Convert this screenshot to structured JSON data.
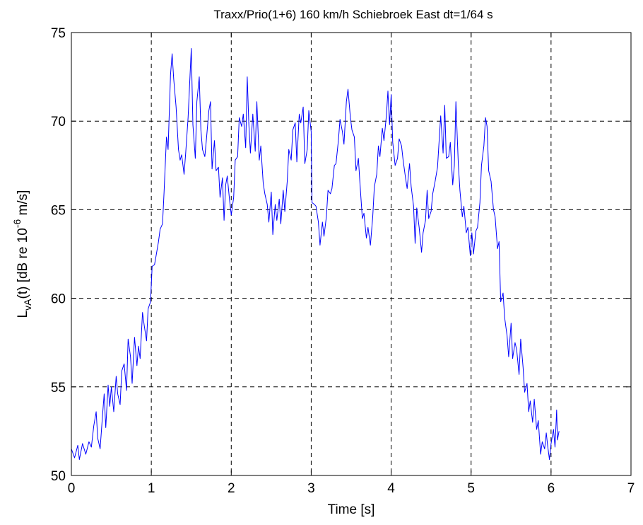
{
  "chart_data": {
    "type": "line",
    "title": "Traxx/Prio(1+6) 160 km/h  Schiebroek East dt=1/64 s",
    "xlabel": "Time [s]",
    "ylabel": {
      "base": "L",
      "sub": "vA",
      "mid": "(t) [dB re 10",
      "sup": "-6",
      "end": " m/s]"
    },
    "xlim": [
      0,
      7
    ],
    "ylim": [
      50,
      75
    ],
    "xticks": [
      "0",
      "1",
      "2",
      "3",
      "4",
      "5",
      "6",
      "7"
    ],
    "yticks": [
      "50",
      "55",
      "60",
      "65",
      "70",
      "75"
    ],
    "grid": true,
    "grid_style": "dashed",
    "line_color": "#0000ff",
    "series": [
      {
        "points": [
          [
            0.0,
            51.5
          ],
          [
            0.04,
            51.0
          ],
          [
            0.08,
            51.7
          ],
          [
            0.1,
            50.9
          ],
          [
            0.14,
            51.8
          ],
          [
            0.18,
            51.2
          ],
          [
            0.22,
            51.9
          ],
          [
            0.25,
            51.6
          ],
          [
            0.28,
            52.8
          ],
          [
            0.31,
            53.6
          ],
          [
            0.33,
            52.1
          ],
          [
            0.36,
            51.5
          ],
          [
            0.39,
            53.4
          ],
          [
            0.41,
            54.6
          ],
          [
            0.43,
            52.7
          ],
          [
            0.46,
            55.1
          ],
          [
            0.48,
            53.9
          ],
          [
            0.5,
            55.0
          ],
          [
            0.53,
            53.6
          ],
          [
            0.56,
            55.6
          ],
          [
            0.58,
            54.6
          ],
          [
            0.61,
            54.0
          ],
          [
            0.63,
            55.9
          ],
          [
            0.66,
            56.3
          ],
          [
            0.69,
            54.8
          ],
          [
            0.71,
            57.7
          ],
          [
            0.74,
            56.7
          ],
          [
            0.76,
            55.2
          ],
          [
            0.79,
            57.8
          ],
          [
            0.82,
            56.2
          ],
          [
            0.84,
            57.3
          ],
          [
            0.86,
            56.6
          ],
          [
            0.89,
            59.2
          ],
          [
            0.91,
            58.5
          ],
          [
            0.94,
            57.6
          ],
          [
            0.96,
            59.4
          ],
          [
            0.99,
            59.8
          ],
          [
            1.01,
            61.8
          ],
          [
            1.04,
            61.9
          ],
          [
            1.06,
            62.4
          ],
          [
            1.09,
            63.2
          ],
          [
            1.11,
            63.9
          ],
          [
            1.14,
            64.2
          ],
          [
            1.16,
            66.0
          ],
          [
            1.19,
            69.1
          ],
          [
            1.21,
            68.4
          ],
          [
            1.24,
            72.6
          ],
          [
            1.26,
            73.8
          ],
          [
            1.28,
            72.4
          ],
          [
            1.31,
            70.8
          ],
          [
            1.34,
            68.4
          ],
          [
            1.36,
            67.8
          ],
          [
            1.38,
            68.1
          ],
          [
            1.41,
            67.0
          ],
          [
            1.43,
            68.2
          ],
          [
            1.46,
            70.2
          ],
          [
            1.48,
            72.2
          ],
          [
            1.5,
            74.1
          ],
          [
            1.52,
            69.8
          ],
          [
            1.55,
            67.9
          ],
          [
            1.57,
            71.1
          ],
          [
            1.6,
            72.5
          ],
          [
            1.62,
            69.5
          ],
          [
            1.64,
            68.4
          ],
          [
            1.67,
            68.0
          ],
          [
            1.69,
            69.0
          ],
          [
            1.72,
            70.6
          ],
          [
            1.74,
            71.1
          ],
          [
            1.76,
            67.3
          ],
          [
            1.79,
            68.9
          ],
          [
            1.81,
            67.2
          ],
          [
            1.84,
            67.4
          ],
          [
            1.86,
            65.7
          ],
          [
            1.89,
            66.8
          ],
          [
            1.91,
            64.4
          ],
          [
            1.93,
            66.4
          ],
          [
            1.95,
            66.9
          ],
          [
            1.98,
            65.5
          ],
          [
            2.0,
            64.7
          ],
          [
            2.03,
            65.7
          ],
          [
            2.05,
            67.8
          ],
          [
            2.08,
            68.0
          ],
          [
            2.1,
            70.2
          ],
          [
            2.13,
            69.7
          ],
          [
            2.15,
            70.4
          ],
          [
            2.18,
            68.5
          ],
          [
            2.2,
            72.5
          ],
          [
            2.22,
            69.8
          ],
          [
            2.24,
            68.2
          ],
          [
            2.27,
            70.4
          ],
          [
            2.3,
            68.3
          ],
          [
            2.32,
            71.1
          ],
          [
            2.35,
            67.8
          ],
          [
            2.37,
            68.6
          ],
          [
            2.4,
            66.5
          ],
          [
            2.42,
            65.9
          ],
          [
            2.45,
            65.3
          ],
          [
            2.47,
            64.3
          ],
          [
            2.5,
            66.0
          ],
          [
            2.52,
            63.6
          ],
          [
            2.55,
            65.3
          ],
          [
            2.57,
            64.4
          ],
          [
            2.6,
            65.6
          ],
          [
            2.62,
            64.2
          ],
          [
            2.65,
            66.1
          ],
          [
            2.67,
            64.9
          ],
          [
            2.7,
            66.6
          ],
          [
            2.72,
            68.4
          ],
          [
            2.75,
            67.8
          ],
          [
            2.77,
            69.5
          ],
          [
            2.8,
            69.9
          ],
          [
            2.82,
            67.7
          ],
          [
            2.85,
            70.4
          ],
          [
            2.87,
            69.9
          ],
          [
            2.9,
            70.8
          ],
          [
            2.92,
            67.6
          ],
          [
            2.95,
            68.4
          ],
          [
            2.97,
            70.6
          ],
          [
            3.0,
            69.4
          ],
          [
            3.01,
            65.4
          ],
          [
            3.04,
            65.3
          ],
          [
            3.06,
            65.2
          ],
          [
            3.09,
            64.3
          ],
          [
            3.11,
            63.0
          ],
          [
            3.14,
            64.3
          ],
          [
            3.16,
            63.5
          ],
          [
            3.19,
            64.6
          ],
          [
            3.21,
            66.1
          ],
          [
            3.24,
            65.9
          ],
          [
            3.26,
            66.2
          ],
          [
            3.29,
            67.5
          ],
          [
            3.31,
            67.6
          ],
          [
            3.34,
            68.9
          ],
          [
            3.36,
            70.1
          ],
          [
            3.39,
            69.4
          ],
          [
            3.41,
            68.7
          ],
          [
            3.44,
            71.1
          ],
          [
            3.46,
            71.8
          ],
          [
            3.49,
            70.2
          ],
          [
            3.51,
            69.5
          ],
          [
            3.54,
            69.1
          ],
          [
            3.56,
            67.2
          ],
          [
            3.59,
            67.9
          ],
          [
            3.61,
            66.5
          ],
          [
            3.64,
            64.5
          ],
          [
            3.66,
            64.8
          ],
          [
            3.69,
            63.4
          ],
          [
            3.71,
            64.0
          ],
          [
            3.74,
            63.0
          ],
          [
            3.77,
            64.6
          ],
          [
            3.79,
            66.3
          ],
          [
            3.82,
            67.0
          ],
          [
            3.84,
            68.6
          ],
          [
            3.86,
            68.0
          ],
          [
            3.89,
            69.6
          ],
          [
            3.91,
            68.9
          ],
          [
            3.94,
            70.3
          ],
          [
            3.96,
            71.7
          ],
          [
            3.98,
            69.8
          ],
          [
            4.0,
            71.5
          ],
          [
            4.02,
            68.8
          ],
          [
            4.05,
            67.5
          ],
          [
            4.08,
            67.9
          ],
          [
            4.1,
            69.0
          ],
          [
            4.13,
            68.6
          ],
          [
            4.15,
            67.8
          ],
          [
            4.18,
            66.8
          ],
          [
            4.2,
            66.2
          ],
          [
            4.23,
            67.6
          ],
          [
            4.25,
            66.3
          ],
          [
            4.28,
            65.2
          ],
          [
            4.3,
            63.1
          ],
          [
            4.32,
            65.1
          ],
          [
            4.35,
            64.0
          ],
          [
            4.38,
            62.6
          ],
          [
            4.4,
            63.7
          ],
          [
            4.43,
            64.4
          ],
          [
            4.45,
            66.1
          ],
          [
            4.47,
            64.5
          ],
          [
            4.5,
            64.9
          ],
          [
            4.52,
            65.9
          ],
          [
            4.55,
            66.6
          ],
          [
            4.58,
            67.4
          ],
          [
            4.6,
            68.9
          ],
          [
            4.62,
            70.3
          ],
          [
            4.65,
            68.2
          ],
          [
            4.67,
            70.9
          ],
          [
            4.69,
            67.9
          ],
          [
            4.72,
            68.0
          ],
          [
            4.74,
            68.8
          ],
          [
            4.77,
            66.4
          ],
          [
            4.79,
            67.5
          ],
          [
            4.81,
            71.1
          ],
          [
            4.84,
            67.6
          ],
          [
            4.86,
            66.1
          ],
          [
            4.89,
            64.6
          ],
          [
            4.91,
            65.2
          ],
          [
            4.94,
            63.7
          ],
          [
            4.96,
            64.0
          ],
          [
            4.99,
            62.4
          ],
          [
            5.01,
            63.7
          ],
          [
            5.03,
            62.5
          ],
          [
            5.06,
            63.8
          ],
          [
            5.08,
            64.0
          ],
          [
            5.11,
            65.4
          ],
          [
            5.13,
            67.5
          ],
          [
            5.16,
            68.6
          ],
          [
            5.18,
            70.2
          ],
          [
            5.2,
            69.7
          ],
          [
            5.22,
            67.2
          ],
          [
            5.25,
            66.6
          ],
          [
            5.28,
            65.0
          ],
          [
            5.3,
            64.6
          ],
          [
            5.33,
            62.8
          ],
          [
            5.35,
            63.2
          ],
          [
            5.37,
            59.8
          ],
          [
            5.4,
            60.3
          ],
          [
            5.42,
            58.9
          ],
          [
            5.45,
            57.9
          ],
          [
            5.47,
            56.7
          ],
          [
            5.5,
            58.6
          ],
          [
            5.52,
            56.6
          ],
          [
            5.55,
            57.5
          ],
          [
            5.57,
            57.1
          ],
          [
            5.6,
            55.7
          ],
          [
            5.62,
            57.7
          ],
          [
            5.65,
            56.1
          ],
          [
            5.67,
            54.7
          ],
          [
            5.7,
            55.2
          ],
          [
            5.72,
            53.6
          ],
          [
            5.74,
            54.2
          ],
          [
            5.77,
            53.0
          ],
          [
            5.79,
            54.3
          ],
          [
            5.82,
            52.6
          ],
          [
            5.84,
            53.1
          ],
          [
            5.87,
            51.2
          ],
          [
            5.89,
            51.9
          ],
          [
            5.92,
            51.5
          ],
          [
            5.94,
            52.4
          ],
          [
            5.96,
            51.6
          ],
          [
            5.98,
            50.9
          ],
          [
            6.0,
            51.8
          ],
          [
            6.03,
            52.6
          ],
          [
            6.05,
            51.6
          ],
          [
            6.07,
            53.7
          ],
          [
            6.08,
            52.0
          ],
          [
            6.1,
            52.5
          ]
        ]
      }
    ]
  }
}
